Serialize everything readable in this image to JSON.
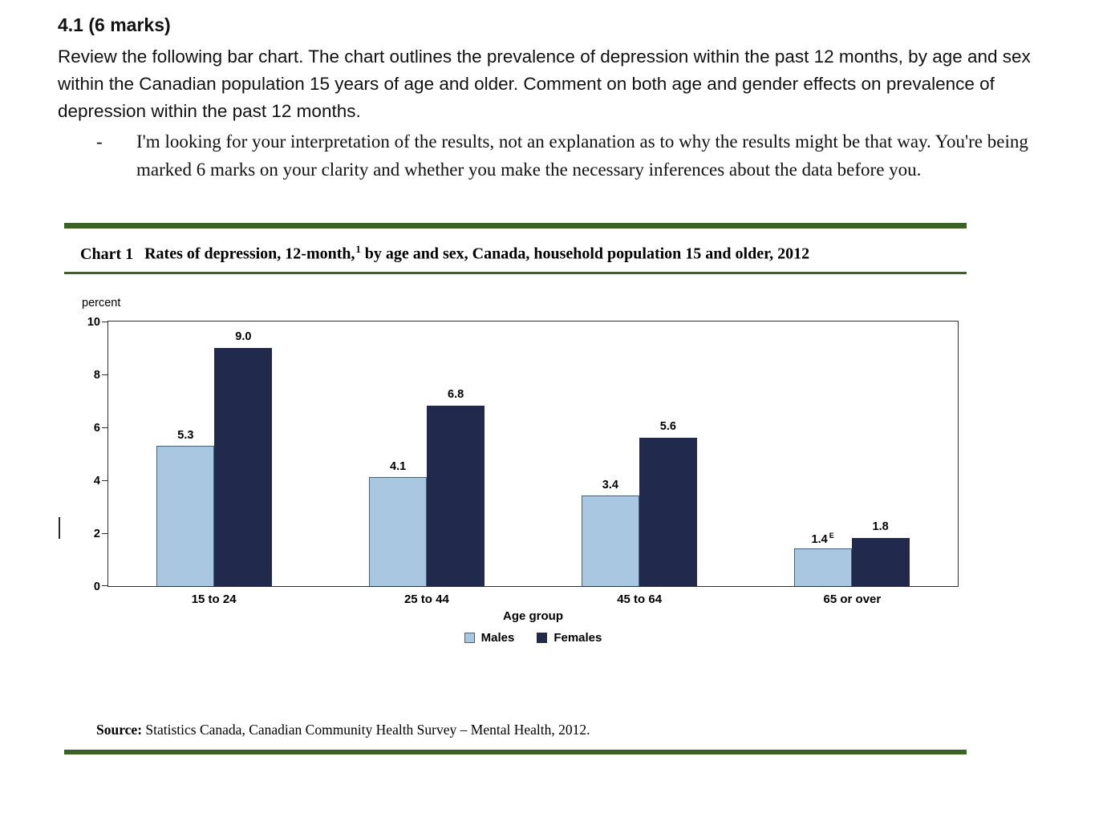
{
  "question": {
    "heading": "4.1 (6 marks)",
    "body": "Review the following bar chart. The chart outlines the prevalence of depression within the past 12 months, by age and sex within the Canadian population 15 years of age and older.  Comment on both age and gender effects on prevalence of depression within the past 12 months.",
    "bullet_dash": "-",
    "bullet": "I'm looking for your interpretation of the results, not an explanation as to why the results might be that way. You're being marked 6 marks on your clarity and whether you make the necessary inferences about the data before you."
  },
  "chart": {
    "title_label": "Chart 1",
    "title_main": "Rates of depression, 12-month,",
    "title_sup": "1",
    "title_rest": "by age and sex, Canada, household population 15 and older, 2012",
    "accent_color": "#3c6325"
  },
  "chart_data": {
    "type": "bar",
    "title": "Chart 1  Rates of depression, 12-month, by age and sex, Canada, household population 15 and older, 2012",
    "categories": [
      "15 to 24",
      "25 to 44",
      "45 to 64",
      "65 or over"
    ],
    "series": [
      {
        "name": "Males",
        "values": [
          5.3,
          4.1,
          3.4,
          1.4
        ],
        "value_labels": [
          "5.3",
          "4.1",
          "3.4",
          "1.4"
        ],
        "value_sups": [
          "",
          "",
          "",
          "E"
        ],
        "fill": "#a9c7e1",
        "border": "#44617d"
      },
      {
        "name": "Females",
        "values": [
          9.0,
          6.8,
          5.6,
          1.8
        ],
        "value_labels": [
          "9.0",
          "6.8",
          "5.6",
          "1.8"
        ],
        "value_sups": [
          "",
          "",
          "",
          ""
        ],
        "fill": "#212a4c",
        "border": ""
      }
    ],
    "ylabel": "percent",
    "xlabel": "Age group",
    "ylim": [
      0,
      10
    ],
    "yticks": [
      0,
      2,
      4,
      6,
      8,
      10
    ],
    "grid": false,
    "legend_position": "bottom"
  },
  "source": {
    "label": "Source:",
    "text": "Statistics Canada, Canadian Community Health Survey  –  Mental Health, 2012."
  }
}
